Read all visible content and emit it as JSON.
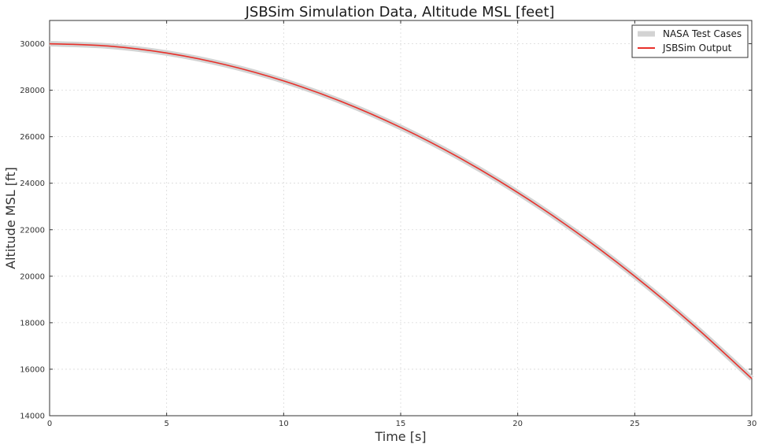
{
  "chart_data": {
    "type": "line",
    "title": "JSBSim Simulation Data, Altitude MSL [feet]",
    "xlabel": "Time [s]",
    "ylabel": "Altitude MSL [ft]",
    "xlim": [
      0,
      30
    ],
    "ylim": [
      14000,
      31000
    ],
    "xticks": [
      0,
      5,
      10,
      15,
      20,
      25,
      30
    ],
    "yticks": [
      14000,
      16000,
      18000,
      20000,
      22000,
      24000,
      26000,
      28000,
      30000
    ],
    "grid": true,
    "legend_position": "top-right",
    "series": [
      {
        "name": "NASA Test Cases",
        "color": "#d3d3d3",
        "style": "thick-band",
        "x": [
          0,
          2.5,
          5,
          7.5,
          10,
          12.5,
          15,
          17.5,
          20,
          22.5,
          25,
          27.5,
          30
        ],
        "y": [
          30000,
          29900,
          29600,
          29100,
          28400,
          27500,
          26400,
          25100,
          23600,
          21900,
          20000,
          17900,
          15600
        ]
      },
      {
        "name": "JSBSim Output",
        "color": "#e8302a",
        "style": "line",
        "x": [
          0,
          2.5,
          5,
          7.5,
          10,
          12.5,
          15,
          17.5,
          20,
          22.5,
          25,
          27.5,
          30
        ],
        "y": [
          30000,
          29900,
          29600,
          29100,
          28400,
          27500,
          26400,
          25100,
          23600,
          21900,
          20000,
          17900,
          15600
        ]
      }
    ]
  }
}
